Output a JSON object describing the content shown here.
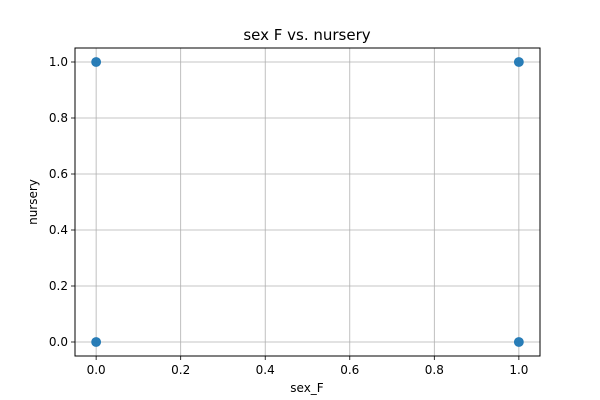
{
  "chart_data": {
    "type": "scatter",
    "title": "sex F vs. nursery",
    "xlabel": "sex_F",
    "ylabel": "nursery",
    "x_ticks": [
      "0.0",
      "0.2",
      "0.4",
      "0.6",
      "0.8",
      "1.0"
    ],
    "y_ticks": [
      "0.0",
      "0.2",
      "0.4",
      "0.6",
      "0.8",
      "1.0"
    ],
    "xlim": [
      -0.05,
      1.05
    ],
    "ylim": [
      -0.05,
      1.05
    ],
    "grid": true,
    "legend": false,
    "points": [
      {
        "x": 0,
        "y": 0
      },
      {
        "x": 0,
        "y": 1
      },
      {
        "x": 1,
        "y": 0
      },
      {
        "x": 1,
        "y": 1
      }
    ],
    "colors": {
      "point": "#1f77b4",
      "grid": "#b0b0b0",
      "axis": "#000000"
    }
  }
}
